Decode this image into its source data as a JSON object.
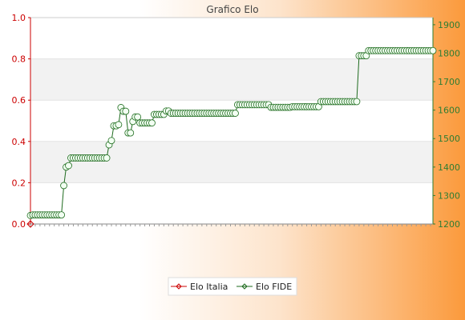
{
  "chart_data": {
    "type": "line",
    "title": "Grafico Elo",
    "xlabel": "",
    "ylabel_left": "",
    "ylabel_right": "",
    "y_left_ticks": [
      "0.0",
      "0.2",
      "0.4",
      "0.6",
      "0.8",
      "1.0"
    ],
    "y_left_lim": [
      0,
      1
    ],
    "y_right_ticks": [
      "1200",
      "1300",
      "1400",
      "1500",
      "1600",
      "1700",
      "1800",
      "1900"
    ],
    "y_right_lim": [
      1200,
      1925
    ],
    "grid": "horizontal bands",
    "legend_position": "bottom",
    "series": [
      {
        "name": "Elo Italia",
        "axis": "left",
        "color": "#cc0000",
        "values": [
          0
        ]
      },
      {
        "name": "Elo FIDE",
        "axis": "right",
        "color": "#1e6b1e",
        "values": [
          1230,
          1232,
          1232,
          1232,
          1232,
          1232,
          1232,
          1232,
          1232,
          1232,
          1232,
          1232,
          1232,
          1232,
          1335,
          1400,
          1405,
          1432,
          1432,
          1432,
          1432,
          1432,
          1432,
          1432,
          1432,
          1432,
          1432,
          1432,
          1432,
          1432,
          1432,
          1432,
          1432,
          1478,
          1493,
          1545,
          1545,
          1549,
          1609,
          1596,
          1596,
          1520,
          1520,
          1560,
          1576,
          1576,
          1555,
          1555,
          1555,
          1555,
          1555,
          1555,
          1585,
          1585,
          1585,
          1585,
          1585,
          1597,
          1597,
          1589,
          1589,
          1589,
          1589,
          1589,
          1589,
          1589,
          1589,
          1589,
          1589,
          1589,
          1589,
          1589,
          1589,
          1589,
          1589,
          1589,
          1589,
          1589,
          1589,
          1589,
          1589,
          1589,
          1589,
          1589,
          1589,
          1589,
          1589,
          1619,
          1619,
          1619,
          1619,
          1619,
          1619,
          1619,
          1619,
          1619,
          1619,
          1619,
          1619,
          1619,
          1619,
          1610,
          1610,
          1610,
          1610,
          1610,
          1610,
          1610,
          1610,
          1610,
          1612,
          1612,
          1612,
          1612,
          1612,
          1612,
          1612,
          1612,
          1612,
          1612,
          1612,
          1612,
          1630,
          1630,
          1630,
          1630,
          1630,
          1630,
          1630,
          1630,
          1630,
          1630,
          1630,
          1630,
          1630,
          1630,
          1630,
          1630,
          1791,
          1791,
          1791,
          1791,
          1809,
          1809,
          1809,
          1809,
          1809,
          1809,
          1809,
          1809,
          1809,
          1809,
          1809,
          1809,
          1809,
          1809,
          1809,
          1809,
          1809,
          1809,
          1809,
          1809,
          1809,
          1809,
          1809,
          1809,
          1809,
          1809,
          1809,
          1809
        ]
      }
    ]
  }
}
